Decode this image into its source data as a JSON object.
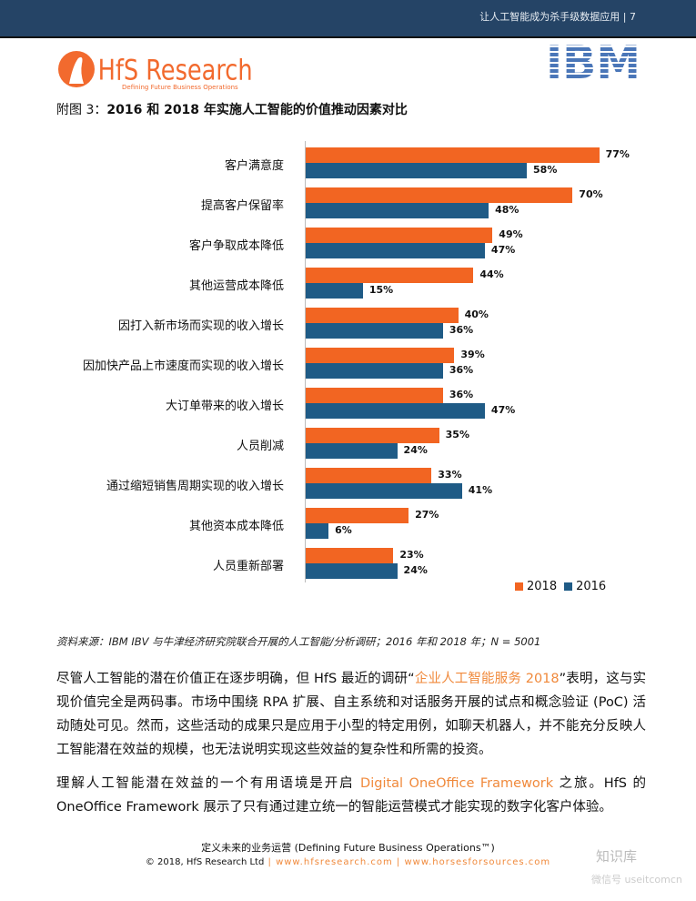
{
  "header": {
    "title": "让人工智能成为杀手级数据应用 | 7"
  },
  "logos": {
    "hfs": "HfS Research",
    "hfs_tagline": "Defining Future Business Operations",
    "ibm": "IBM"
  },
  "figure": {
    "prefix": "附图 3：",
    "title": "2016 和 2018 年实施人工智能的价值推动因素对比"
  },
  "chart_data": {
    "type": "bar",
    "orientation": "horizontal",
    "categories": [
      "客户满意度",
      "提高客户保留率",
      "客户争取成本降低",
      "其他运营成本降低",
      "因打入新市场而实现的收入增长",
      "因加快产品上市速度而实现的收入增长",
      "大订单带来的收入增长",
      "人员削减",
      "通过缩短销售周期实现的收入增长",
      "其他资本成本降低",
      "人员重新部署"
    ],
    "series": [
      {
        "name": "2018",
        "color": "#f26522",
        "values": [
          77,
          70,
          49,
          44,
          40,
          39,
          36,
          35,
          33,
          27,
          23
        ]
      },
      {
        "name": "2016",
        "color": "#1f5b86",
        "values": [
          58,
          48,
          47,
          15,
          36,
          36,
          47,
          24,
          41,
          6,
          24
        ]
      }
    ],
    "value_suffix": "%",
    "xlim": [
      0,
      100
    ],
    "legend": "bottom-right",
    "grid": false
  },
  "source": "资料来源：IBM IBV 与牛津经济研究院联合开展的人工智能/分析调研；2016 年和 2018 年；N = 5001",
  "para1": {
    "a": "尽管人工智能的潜在价值正在逐步明确，但 HfS 最近的调研“",
    "link": "企业人工智能服务 2018",
    "b": "”表明，这与实现价值完全是两码事。市场中围绕 RPA 扩展、自主系统和对话服务开展的试点和概念验证 (PoC) 活动随处可见。然而，这些活动的成果只是应用于小型的特定用例，如聊天机器人，并不能充分反映人工智能潜在效益的规模，也无法说明实现这些效益的复杂性和所需的投资。"
  },
  "para2": {
    "a": "理解人工智能潜在效益的一个有用语境是开启 ",
    "link": "Digital OneOffice Framework",
    "b": " 之旅。HfS 的 OneOffice Framework 展示了只有通过建立统一的智能运营模式才能实现的数字化客户体验。"
  },
  "footer": {
    "line1": "定义未来的业务运营 (Defining Future Business Operations™)",
    "copyright": "© 2018, HfS Research Ltd",
    "sep": " | ",
    "link1": "www.hfsresearch.com",
    "link2": "www.horsesforsources.com"
  },
  "watermark": {
    "name": "知识库",
    "id": "微信号 useitcomcn"
  }
}
